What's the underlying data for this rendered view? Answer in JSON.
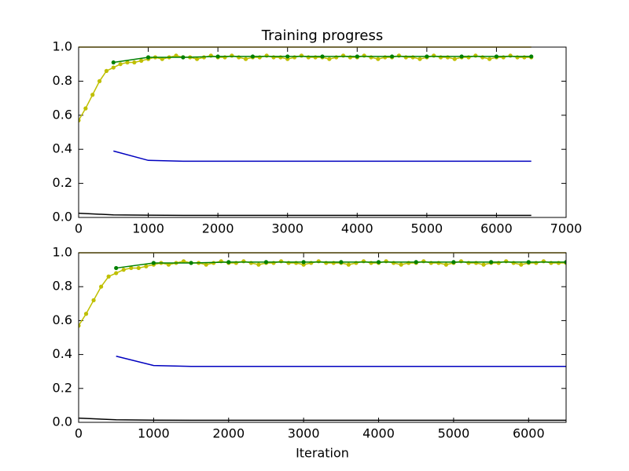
{
  "chart_data": [
    {
      "type": "line",
      "title": "Training progress",
      "xlim": [
        0,
        7000
      ],
      "xticks": [
        0,
        1000,
        2000,
        3000,
        4000,
        5000,
        6000,
        7000
      ],
      "ylim": [
        0,
        1
      ],
      "yticks": [
        {
          "value": 0,
          "label": "0.0"
        },
        {
          "value": 0.2,
          "label": "0.2"
        },
        {
          "value": 0.4,
          "label": "0.4"
        },
        {
          "value": 0.6,
          "label": "0.6"
        },
        {
          "value": 0.8,
          "label": "0.8"
        },
        {
          "value": 1,
          "label": "1.0"
        }
      ],
      "series": [
        {
          "color": "#d4b000",
          "markers": false,
          "x": [
            0,
            6500
          ],
          "values": [
            1,
            1
          ]
        },
        {
          "color": "#000000",
          "markers": false,
          "x": [
            0,
            500,
            1000,
            1500,
            2000,
            2500,
            3000,
            3500,
            4000,
            4500,
            5000,
            5500,
            6000,
            6500
          ],
          "values": [
            0.025,
            0.015,
            0.013,
            0.012,
            0.012,
            0.012,
            0.012,
            0.012,
            0.012,
            0.012,
            0.012,
            0.012,
            0.012,
            0.012
          ]
        },
        {
          "color": "#0000bf",
          "markers": false,
          "x": [
            500,
            1000,
            1500,
            2000,
            2500,
            3000,
            3500,
            4000,
            4500,
            5000,
            5500,
            6000,
            6500
          ],
          "values": [
            0.39,
            0.335,
            0.33,
            0.33,
            0.33,
            0.33,
            0.33,
            0.33,
            0.33,
            0.33,
            0.33,
            0.33,
            0.33
          ]
        },
        {
          "color": "#bfbf00",
          "markers": true,
          "x": [
            0,
            100,
            200,
            300,
            400,
            500,
            600,
            700,
            800,
            900,
            1000,
            1100,
            1200,
            1300,
            1400,
            1500,
            1600,
            1700,
            1800,
            1900,
            2000,
            2100,
            2200,
            2300,
            2400,
            2500,
            2600,
            2700,
            2800,
            2900,
            3000,
            3100,
            3200,
            3300,
            3400,
            3500,
            3600,
            3700,
            3800,
            3900,
            4000,
            4100,
            4200,
            4300,
            4400,
            4500,
            4600,
            4700,
            4800,
            4900,
            5000,
            5100,
            5200,
            5300,
            5400,
            5500,
            5600,
            5700,
            5800,
            5900,
            6000,
            6100,
            6200,
            6300,
            6400,
            6500
          ],
          "values": [
            0.57,
            0.64,
            0.72,
            0.8,
            0.86,
            0.88,
            0.9,
            0.91,
            0.91,
            0.92,
            0.93,
            0.94,
            0.93,
            0.94,
            0.95,
            0.94,
            0.94,
            0.93,
            0.94,
            0.95,
            0.94,
            0.94,
            0.95,
            0.94,
            0.93,
            0.94,
            0.94,
            0.95,
            0.94,
            0.94,
            0.93,
            0.94,
            0.95,
            0.94,
            0.94,
            0.94,
            0.93,
            0.94,
            0.95,
            0.94,
            0.94,
            0.95,
            0.94,
            0.93,
            0.94,
            0.94,
            0.95,
            0.94,
            0.94,
            0.93,
            0.94,
            0.95,
            0.94,
            0.94,
            0.93,
            0.94,
            0.94,
            0.95,
            0.94,
            0.93,
            0.94,
            0.94,
            0.95,
            0.94,
            0.94,
            0.94
          ]
        },
        {
          "color": "#008000",
          "markers": true,
          "x": [
            500,
            1000,
            1500,
            2000,
            2500,
            3000,
            3500,
            4000,
            4500,
            5000,
            5500,
            6000,
            6500
          ],
          "values": [
            0.91,
            0.94,
            0.94,
            0.945,
            0.945,
            0.945,
            0.945,
            0.945,
            0.945,
            0.945,
            0.945,
            0.945,
            0.945
          ]
        }
      ]
    },
    {
      "type": "line",
      "xlabel": "Iteration",
      "xlim": [
        0,
        6500
      ],
      "xticks": [
        0,
        1000,
        2000,
        3000,
        4000,
        5000,
        6000
      ],
      "ylim": [
        0,
        1
      ],
      "yticks": [
        {
          "value": 0,
          "label": "0.0"
        },
        {
          "value": 0.2,
          "label": "0.2"
        },
        {
          "value": 0.4,
          "label": "0.4"
        },
        {
          "value": 0.6,
          "label": "0.6"
        },
        {
          "value": 0.8,
          "label": "0.8"
        },
        {
          "value": 1,
          "label": "1.0"
        }
      ],
      "series": [
        {
          "color": "#d4b000",
          "markers": false,
          "x": [
            0,
            6500
          ],
          "values": [
            1,
            1
          ]
        },
        {
          "color": "#000000",
          "markers": false,
          "x": [
            0,
            500,
            1000,
            1500,
            2000,
            2500,
            3000,
            3500,
            4000,
            4500,
            5000,
            5500,
            6000,
            6500
          ],
          "values": [
            0.025,
            0.015,
            0.013,
            0.012,
            0.012,
            0.012,
            0.012,
            0.012,
            0.012,
            0.012,
            0.012,
            0.012,
            0.012,
            0.012
          ]
        },
        {
          "color": "#0000bf",
          "markers": false,
          "x": [
            500,
            1000,
            1500,
            2000,
            2500,
            3000,
            3500,
            4000,
            4500,
            5000,
            5500,
            6000,
            6500
          ],
          "values": [
            0.39,
            0.335,
            0.33,
            0.33,
            0.33,
            0.33,
            0.33,
            0.33,
            0.33,
            0.33,
            0.33,
            0.33,
            0.33
          ]
        },
        {
          "color": "#bfbf00",
          "markers": true,
          "x": [
            0,
            100,
            200,
            300,
            400,
            500,
            600,
            700,
            800,
            900,
            1000,
            1100,
            1200,
            1300,
            1400,
            1500,
            1600,
            1700,
            1800,
            1900,
            2000,
            2100,
            2200,
            2300,
            2400,
            2500,
            2600,
            2700,
            2800,
            2900,
            3000,
            3100,
            3200,
            3300,
            3400,
            3500,
            3600,
            3700,
            3800,
            3900,
            4000,
            4100,
            4200,
            4300,
            4400,
            4500,
            4600,
            4700,
            4800,
            4900,
            5000,
            5100,
            5200,
            5300,
            5400,
            5500,
            5600,
            5700,
            5800,
            5900,
            6000,
            6100,
            6200,
            6300,
            6400,
            6500
          ],
          "values": [
            0.57,
            0.64,
            0.72,
            0.8,
            0.86,
            0.88,
            0.9,
            0.91,
            0.91,
            0.92,
            0.93,
            0.94,
            0.93,
            0.94,
            0.95,
            0.94,
            0.94,
            0.93,
            0.94,
            0.95,
            0.94,
            0.94,
            0.95,
            0.94,
            0.93,
            0.94,
            0.94,
            0.95,
            0.94,
            0.94,
            0.93,
            0.94,
            0.95,
            0.94,
            0.94,
            0.94,
            0.93,
            0.94,
            0.95,
            0.94,
            0.94,
            0.95,
            0.94,
            0.93,
            0.94,
            0.94,
            0.95,
            0.94,
            0.94,
            0.93,
            0.94,
            0.95,
            0.94,
            0.94,
            0.93,
            0.94,
            0.94,
            0.95,
            0.94,
            0.93,
            0.94,
            0.94,
            0.95,
            0.94,
            0.94,
            0.94
          ]
        },
        {
          "color": "#008000",
          "markers": true,
          "x": [
            500,
            1000,
            1500,
            2000,
            2500,
            3000,
            3500,
            4000,
            4500,
            5000,
            5500,
            6000,
            6500
          ],
          "values": [
            0.91,
            0.94,
            0.94,
            0.945,
            0.945,
            0.945,
            0.945,
            0.945,
            0.945,
            0.945,
            0.945,
            0.945,
            0.945
          ]
        }
      ]
    }
  ]
}
